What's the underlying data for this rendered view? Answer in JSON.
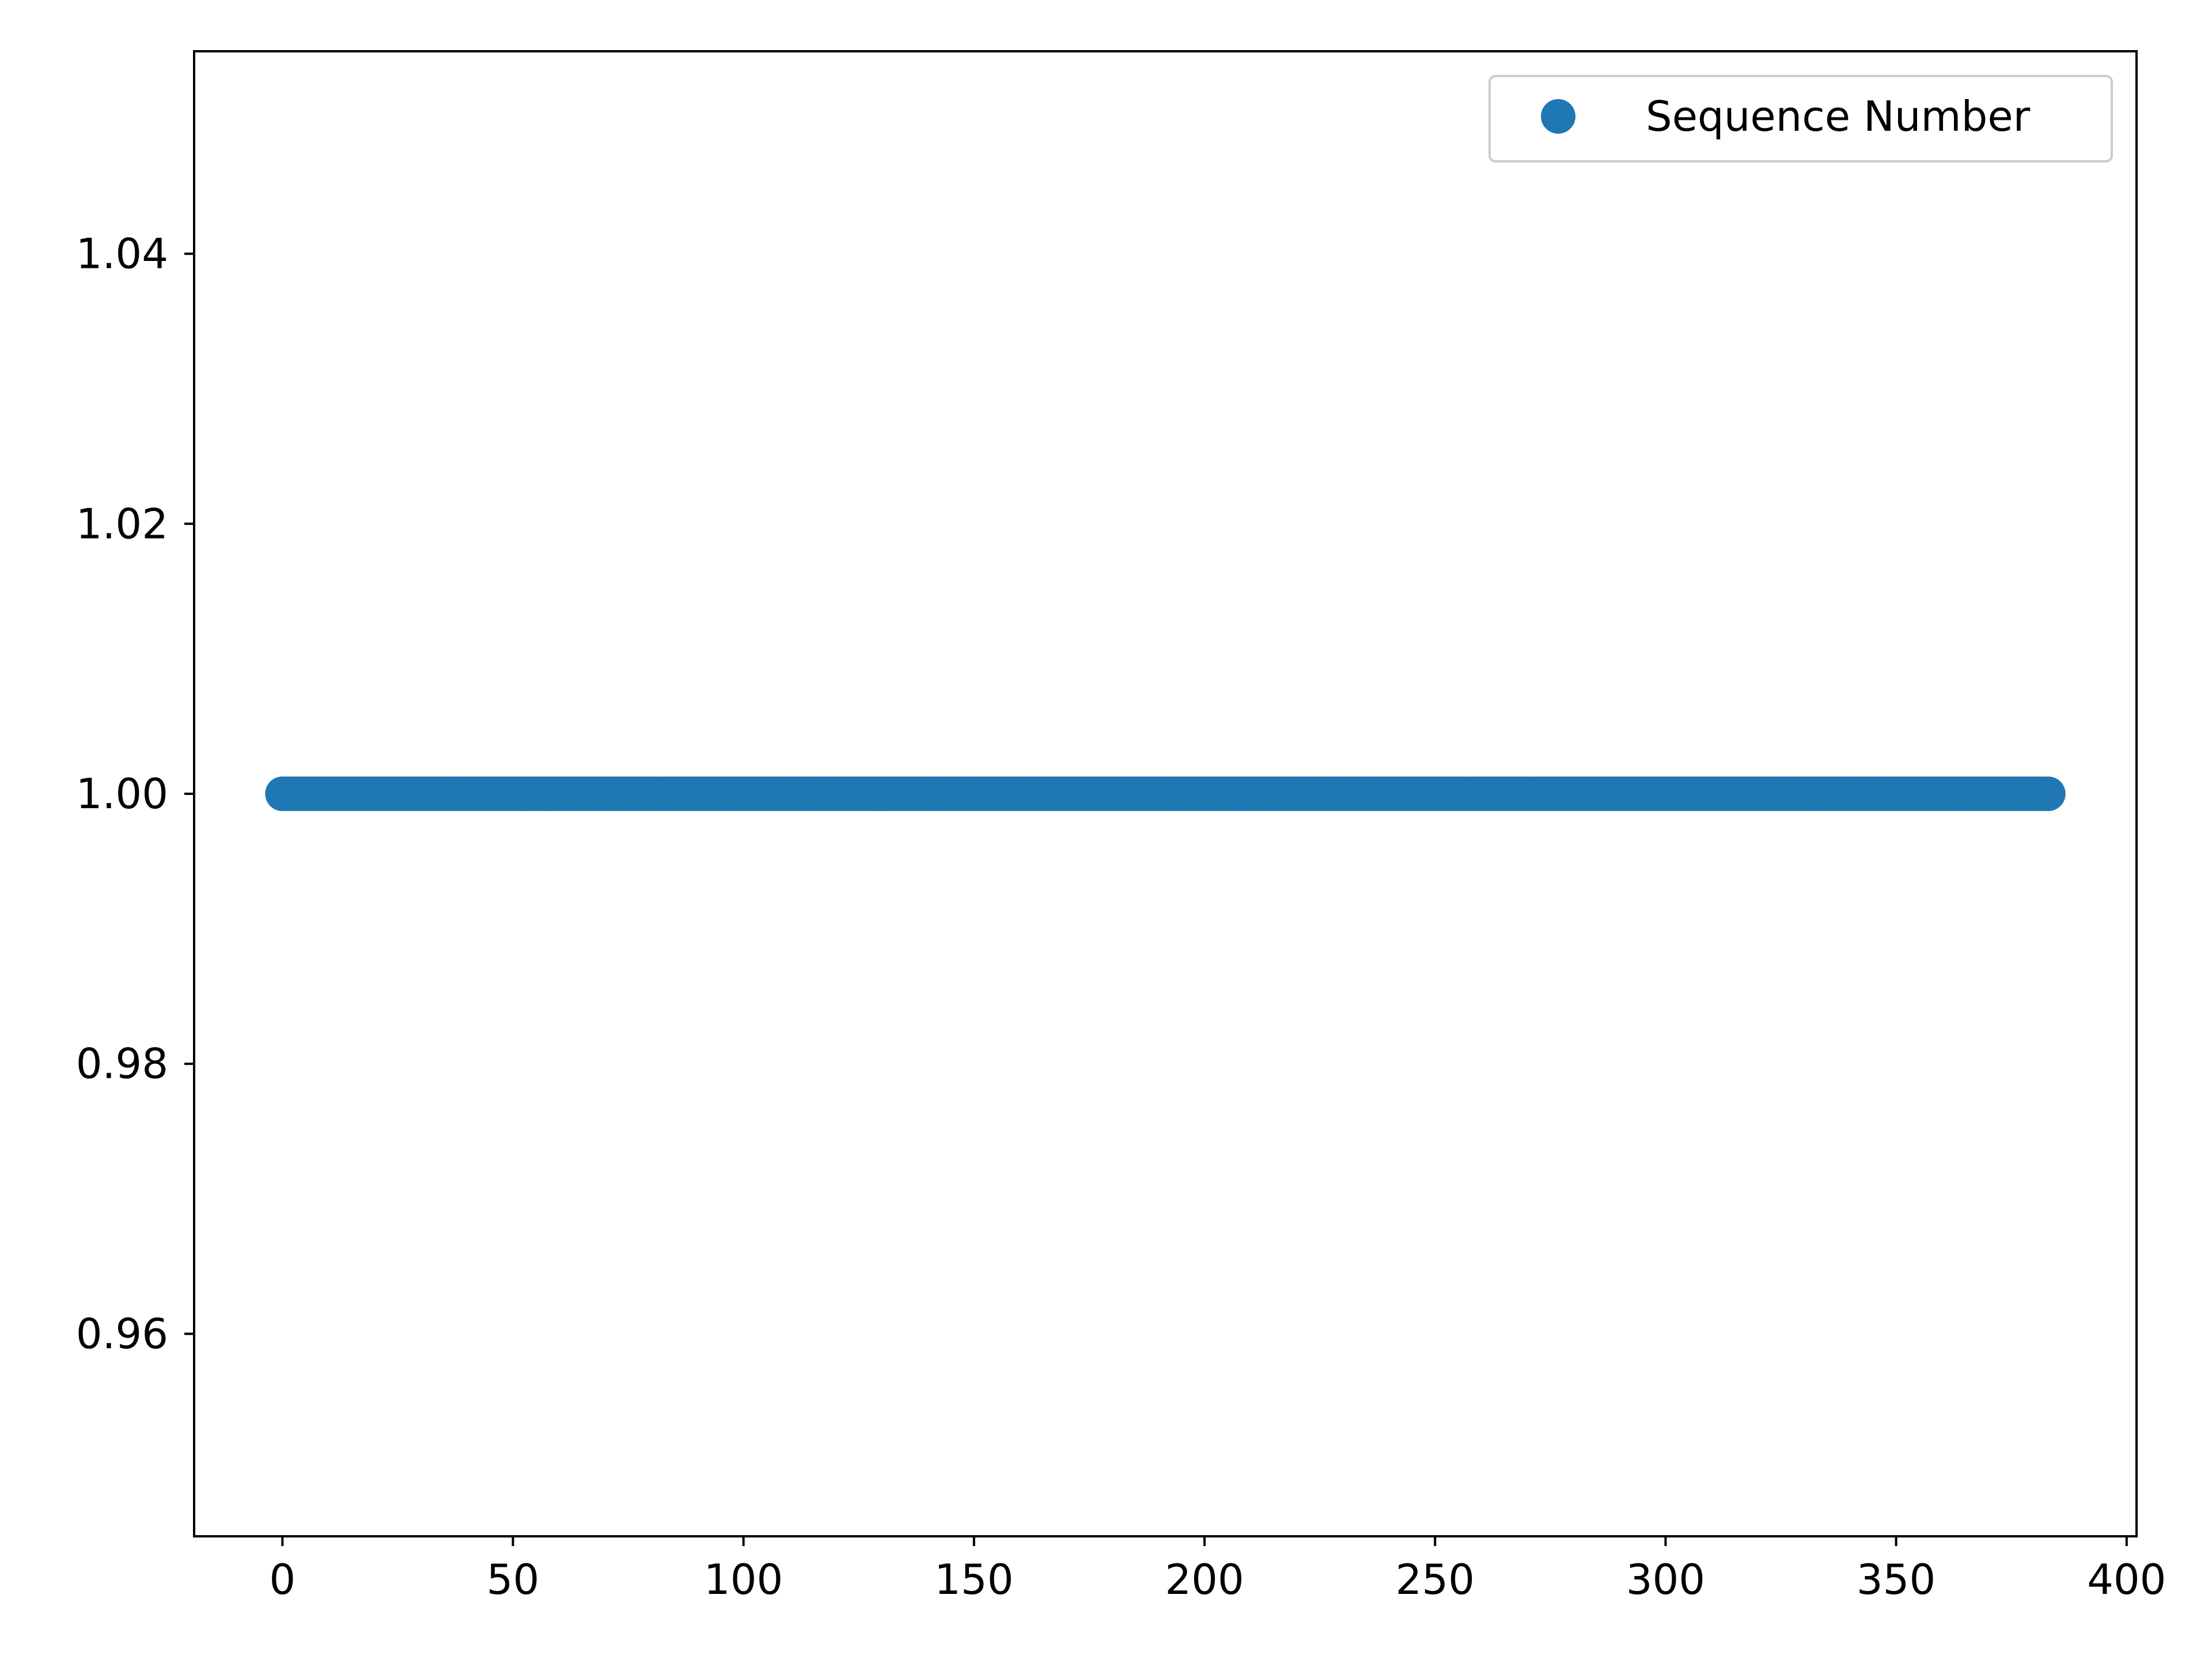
{
  "chart_data": {
    "type": "scatter",
    "title": "",
    "xlabel": "",
    "ylabel": "",
    "xlim": [
      -19.15,
      402.15
    ],
    "ylim": [
      0.945,
      1.055
    ],
    "x_ticks": [
      0,
      50,
      100,
      150,
      200,
      250,
      300,
      350,
      400
    ],
    "x_tick_labels": [
      "0",
      "50",
      "100",
      "150",
      "200",
      "250",
      "300",
      "350",
      "400"
    ],
    "y_ticks": [
      0.96,
      0.98,
      1.0,
      1.02,
      1.04
    ],
    "y_tick_labels": [
      "0.96",
      "0.98",
      "1.00",
      "1.02",
      "1.04"
    ],
    "grid": false,
    "legend": {
      "position": "top-right",
      "entries": [
        "Sequence Number"
      ]
    },
    "series": [
      {
        "name": "Sequence Number",
        "color": "#1f77b4",
        "marker": "circle",
        "x_range": [
          0,
          383
        ],
        "x_step": 1,
        "y_constant": 1.0
      }
    ]
  }
}
